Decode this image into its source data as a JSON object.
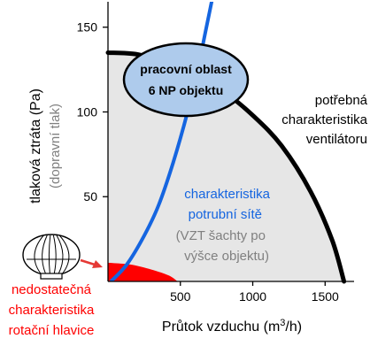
{
  "chart_data": {
    "type": "line",
    "xlabel_main": "Průtok vzduchu (m",
    "xlabel_sup": "3",
    "xlabel_tail": "/h)",
    "ylabel": "tlaková ztráta (Pa)",
    "ylabel_sub": "(dopravní tlak)",
    "xlim": [
      0,
      1700
    ],
    "ylim": [
      0,
      165
    ],
    "x_ticks": [
      500,
      1000,
      1500
    ],
    "y_ticks": [
      50,
      100,
      150
    ],
    "series": [
      {
        "name_lines": [
          "potřebná",
          "charakteristika",
          "ventilátoru"
        ],
        "color": "#000000",
        "points": [
          [
            0,
            135
          ],
          [
            200,
            134
          ],
          [
            400,
            129
          ],
          [
            600,
            122
          ],
          [
            800,
            112
          ],
          [
            1000,
            98
          ],
          [
            1200,
            80
          ],
          [
            1400,
            53
          ],
          [
            1550,
            24
          ],
          [
            1630,
            0
          ]
        ]
      },
      {
        "name_lines": [
          "charakteristika",
          "potrubní sítě"
        ],
        "note_lines": [
          "(VZT šachty po",
          "výšce objektu)"
        ],
        "color": "#1565e0",
        "points": [
          [
            20,
            0
          ],
          [
            130,
            10
          ],
          [
            250,
            27
          ],
          [
            350,
            45
          ],
          [
            450,
            70
          ],
          [
            550,
            100
          ],
          [
            620,
            125
          ],
          [
            680,
            150
          ],
          [
            740,
            175
          ]
        ]
      },
      {
        "name_lines": [
          "nedostatečná",
          "charakteristika",
          "rotační hlavice"
        ],
        "color": "#ff0000",
        "points": [
          [
            0,
            11
          ],
          [
            150,
            10
          ],
          [
            300,
            7
          ],
          [
            420,
            3.5
          ],
          [
            480,
            0
          ]
        ]
      }
    ],
    "operating_region_lines": [
      "pracovní oblast",
      "6 NP objektu"
    ],
    "colors": {
      "fill": "#e6e6e6",
      "ellipse_fill": "#aecbec",
      "note": "#808080",
      "arrow": "#e53935"
    }
  }
}
